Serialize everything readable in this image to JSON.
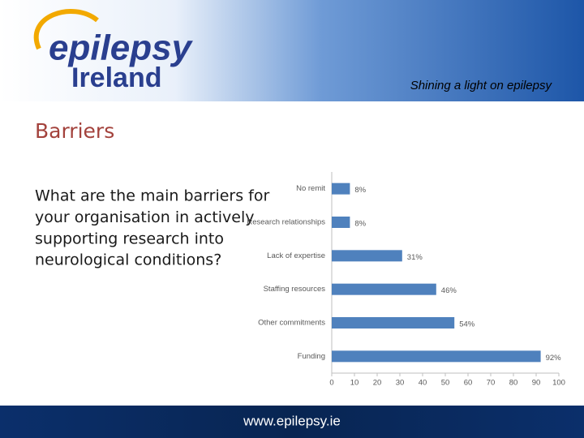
{
  "header": {
    "logo_line1": "epilepsy",
    "logo_line2": "Ireland",
    "tagline": "Shining a light on epilepsy"
  },
  "slide_title": "Barriers",
  "question_lines": [
    "What are the main barriers for",
    "your organisation in actively",
    "supporting research into",
    "neurological conditions?"
  ],
  "chart_data": {
    "type": "bar",
    "orientation": "horizontal",
    "categories": [
      "No remit",
      "Research relationships",
      "Lack of expertise",
      "Staffing resources",
      "Other commitments",
      "Funding"
    ],
    "values": [
      8,
      8,
      31,
      46,
      54,
      92
    ],
    "value_labels": [
      "8%",
      "8%",
      "31%",
      "46%",
      "54%",
      "92%"
    ],
    "color": "#4f81bd",
    "xlim": [
      0,
      100
    ],
    "xticks": [
      0,
      10,
      20,
      30,
      40,
      50,
      60,
      70,
      80,
      90,
      100
    ],
    "grid": false
  },
  "footer": {
    "url": "www.epilepsy.ie"
  }
}
